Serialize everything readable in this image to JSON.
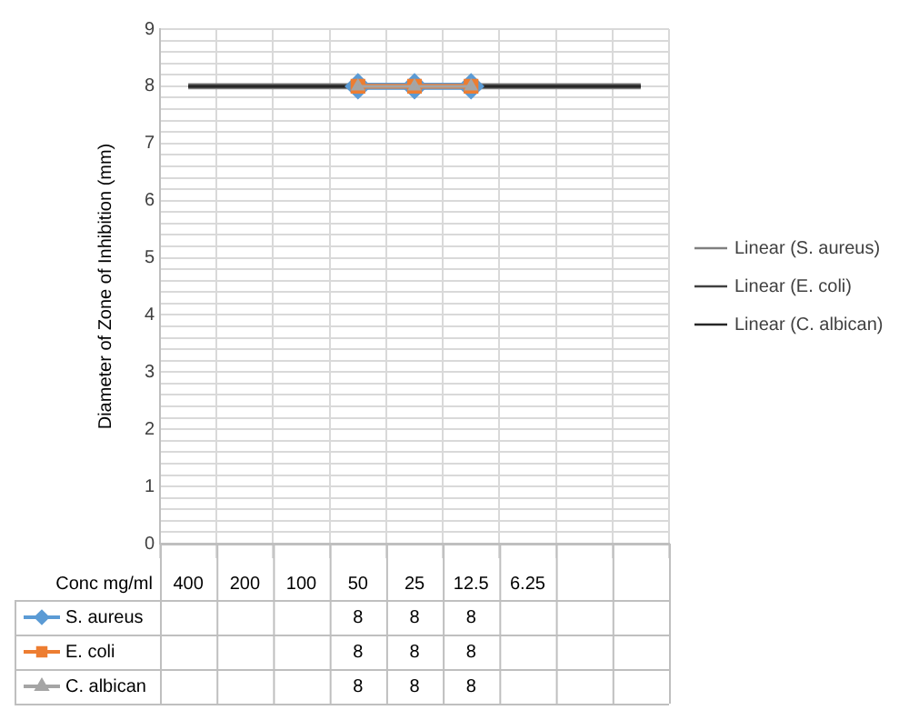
{
  "chart_data": {
    "type": "line",
    "ylabel": "Diameter of Zone of Inhibition (mm)",
    "xlabel": "Conc mg/ml",
    "categories": [
      "400",
      "200",
      "100",
      "50",
      "25",
      "12.5",
      "6.25",
      null,
      null
    ],
    "series": [
      {
        "name": "S. aureus",
        "color": "#5b9bd5",
        "marker": "diamond",
        "values": [
          null,
          null,
          null,
          8,
          8,
          8,
          null,
          null,
          null
        ],
        "value_labels": [
          null,
          null,
          null,
          "8",
          "8",
          "8",
          null,
          null,
          null
        ]
      },
      {
        "name": "E. coli",
        "color": "#ed7d31",
        "marker": "square",
        "values": [
          null,
          null,
          null,
          8,
          8,
          8,
          null,
          null,
          null
        ],
        "value_labels": [
          null,
          null,
          null,
          "8",
          "8",
          "8",
          null,
          null,
          null
        ]
      },
      {
        "name": "C. albican",
        "color": "#a5a5a5",
        "marker": "triangle",
        "values": [
          null,
          null,
          null,
          8,
          8,
          8,
          null,
          null,
          null
        ],
        "value_labels": [
          null,
          null,
          null,
          "8",
          "8",
          "8",
          null,
          null,
          null
        ]
      }
    ],
    "ref_lines": [
      {
        "axis": "y",
        "value": 8,
        "label": "Linear (S. aureus)",
        "color": "#7f7f7f"
      },
      {
        "axis": "y",
        "value": 8,
        "label": "Linear (E. coli)",
        "color": "#404040"
      },
      {
        "axis": "y",
        "value": 8,
        "label": "Linear (C. albican)",
        "color": "#262626"
      }
    ],
    "ylim": [
      0,
      9
    ],
    "yticks": [
      0,
      {
        "value": 0.2,
        "label": null
      },
      {
        "value": 0.4,
        "label": null
      },
      {
        "value": 0.6,
        "label": null
      },
      {
        "value": 0.8,
        "label": null
      },
      1,
      {
        "value": 1.2,
        "label": null
      },
      {
        "value": 1.4,
        "label": null
      },
      {
        "value": 1.6,
        "label": null
      },
      {
        "value": 1.8,
        "label": null
      },
      2,
      {
        "value": 2.2,
        "label": null
      },
      {
        "value": 2.4,
        "label": null
      },
      {
        "value": 2.6,
        "label": null
      },
      {
        "value": 2.8,
        "label": null
      },
      3,
      {
        "value": 3.2,
        "label": null
      },
      {
        "value": 3.4,
        "label": null
      },
      {
        "value": 3.6,
        "label": null
      },
      {
        "value": 3.8,
        "label": null
      },
      4,
      {
        "value": 4.2,
        "label": null
      },
      {
        "value": 4.4,
        "label": null
      },
      {
        "value": 4.6,
        "label": null
      },
      {
        "value": 4.8,
        "label": null
      },
      5,
      {
        "value": 5.2,
        "label": null
      },
      {
        "value": 5.4,
        "label": null
      },
      {
        "value": 5.6,
        "label": null
      },
      {
        "value": 5.8,
        "label": null
      },
      6,
      {
        "value": 6.2,
        "label": null
      },
      {
        "value": 6.4,
        "label": null
      },
      {
        "value": 6.6,
        "label": null
      },
      {
        "value": 6.8,
        "label": null
      },
      7,
      {
        "value": 7.2,
        "label": null
      },
      {
        "value": 7.4,
        "label": null
      },
      {
        "value": 7.6,
        "label": null
      },
      {
        "value": 7.8,
        "label": null
      },
      8,
      {
        "value": 8.2,
        "label": null
      },
      {
        "value": 8.4,
        "label": null
      },
      {
        "value": 8.6,
        "label": null
      },
      {
        "value": 8.8,
        "label": null
      },
      9
    ],
    "grid": true,
    "legend": "right"
  }
}
